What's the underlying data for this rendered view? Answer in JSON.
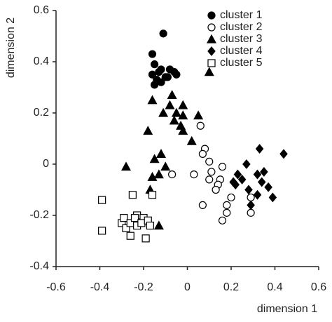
{
  "chart_data": {
    "type": "scatter",
    "xlabel": "dimension 1",
    "ylabel": "dimension 2",
    "xlim": [
      -0.6,
      0.6
    ],
    "ylim": [
      -0.4,
      0.6
    ],
    "xticks": [
      -0.6,
      -0.4,
      -0.2,
      0,
      0.2,
      0.4,
      0.6
    ],
    "yticks": [
      -0.4,
      -0.2,
      0,
      0.2,
      0.4,
      0.6
    ],
    "grid": false,
    "legend": "upper right",
    "series": [
      {
        "name": "cluster 1",
        "color": "#000000",
        "marker": "circle",
        "filled": true,
        "x": [
          -0.11,
          -0.16,
          -0.15,
          -0.13,
          -0.12,
          -0.08,
          -0.05,
          -0.16,
          -0.15,
          -0.12,
          -0.09,
          -0.06,
          -0.14,
          -0.1
        ],
        "y": [
          0.51,
          0.43,
          0.39,
          0.36,
          0.37,
          0.37,
          0.35,
          0.35,
          0.31,
          0.32,
          0.34,
          0.36,
          0.33,
          0.34
        ]
      },
      {
        "name": "cluster 2",
        "color": "#000000",
        "marker": "circle",
        "filled": false,
        "x": [
          -0.07,
          0.03,
          0.06,
          0.08,
          0.07,
          0.1,
          0.11,
          0.1,
          0.16,
          0.15,
          0.14,
          0.13,
          0.07,
          0.18,
          0.18,
          0.16,
          0.2,
          0.29,
          0.29
        ],
        "y": [
          -0.04,
          -0.04,
          0.15,
          0.06,
          0.04,
          0.01,
          -0.03,
          -0.06,
          -0.01,
          -0.06,
          -0.08,
          -0.1,
          -0.16,
          -0.16,
          -0.19,
          -0.22,
          -0.13,
          -0.19,
          -0.13
        ]
      },
      {
        "name": "cluster 3",
        "color": "#000000",
        "marker": "triangle",
        "filled": true,
        "x": [
          0.1,
          -0.07,
          -0.16,
          -0.08,
          -0.02,
          -0.11,
          -0.05,
          -0.02,
          0.05,
          -0.06,
          -0.03,
          -0.02,
          -0.18,
          -0.12,
          0.02,
          -0.15,
          -0.28,
          -0.16,
          -0.13,
          -0.17,
          -0.13,
          -0.1
        ],
        "y": [
          0.36,
          0.27,
          0.25,
          0.23,
          0.23,
          0.2,
          0.2,
          0.19,
          0.19,
          0.17,
          0.15,
          0.13,
          0.13,
          0.04,
          0.09,
          0.02,
          -0.01,
          -0.05,
          -0.04,
          -0.1,
          -0.24,
          -0.01
        ]
      },
      {
        "name": "cluster 4",
        "color": "#000000",
        "marker": "diamond",
        "filled": true,
        "x": [
          0.44,
          0.33,
          0.23,
          0.25,
          0.21,
          0.27,
          0.35,
          0.32,
          0.34,
          0.37,
          0.28,
          0.32,
          0.39,
          0.29,
          0.22
        ],
        "y": [
          0.04,
          0.06,
          -0.04,
          -0.06,
          -0.07,
          0.0,
          -0.03,
          -0.04,
          -0.07,
          -0.09,
          -0.1,
          -0.12,
          -0.13,
          -0.16,
          -0.08
        ]
      },
      {
        "name": "cluster 5",
        "color": "#000000",
        "marker": "square",
        "filled": false,
        "x": [
          -0.39,
          -0.39,
          -0.25,
          -0.16,
          -0.23,
          -0.3,
          -0.28,
          -0.29,
          -0.26,
          -0.24,
          -0.23,
          -0.2,
          -0.21,
          -0.18,
          -0.17,
          -0.26,
          -0.19
        ],
        "y": [
          -0.14,
          -0.26,
          -0.12,
          -0.12,
          -0.2,
          -0.23,
          -0.25,
          -0.21,
          -0.23,
          -0.21,
          -0.24,
          -0.21,
          -0.23,
          -0.22,
          -0.24,
          -0.28,
          -0.29
        ]
      }
    ]
  }
}
